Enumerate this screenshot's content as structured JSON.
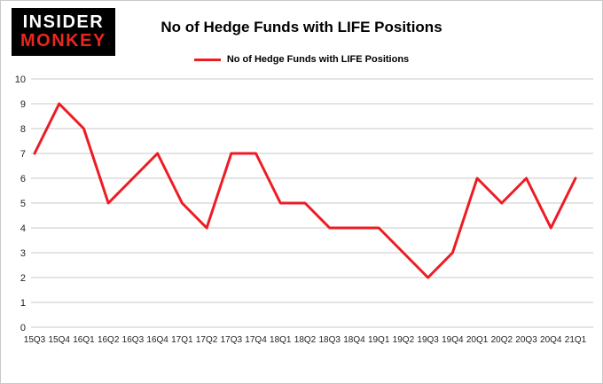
{
  "brand": {
    "line1": "INSIDER",
    "line2": "MONKEY",
    "bg_color": "#000000",
    "line1_color": "#ffffff",
    "line2_color": "#e8271e"
  },
  "header": {
    "title": "No of Hedge Funds with LIFE Positions"
  },
  "legend": {
    "label": "No of Hedge Funds with LIFE Positions",
    "color": "#ed1c24"
  },
  "chart_data": {
    "type": "line",
    "title": "No of Hedge Funds with LIFE Positions",
    "categories": [
      "15Q3",
      "15Q4",
      "16Q1",
      "16Q2",
      "16Q3",
      "16Q4",
      "17Q1",
      "17Q2",
      "17Q3",
      "17Q4",
      "18Q1",
      "18Q2",
      "18Q3",
      "18Q4",
      "19Q1",
      "19Q2",
      "19Q3",
      "19Q4",
      "20Q1",
      "20Q2",
      "20Q3",
      "20Q4",
      "21Q1"
    ],
    "values": [
      7,
      9,
      8,
      5,
      6,
      7,
      5,
      4,
      7,
      7,
      5,
      5,
      4,
      4,
      4,
      3,
      2,
      3,
      6,
      5,
      6,
      4,
      6
    ],
    "xlabel": "",
    "ylabel": "",
    "ylim": [
      0,
      10
    ],
    "ytick_step": 1,
    "grid": true,
    "grid_color": "#c9c9c9",
    "line_color": "#ed1c24",
    "line_width": 3,
    "legend_position": "top"
  }
}
